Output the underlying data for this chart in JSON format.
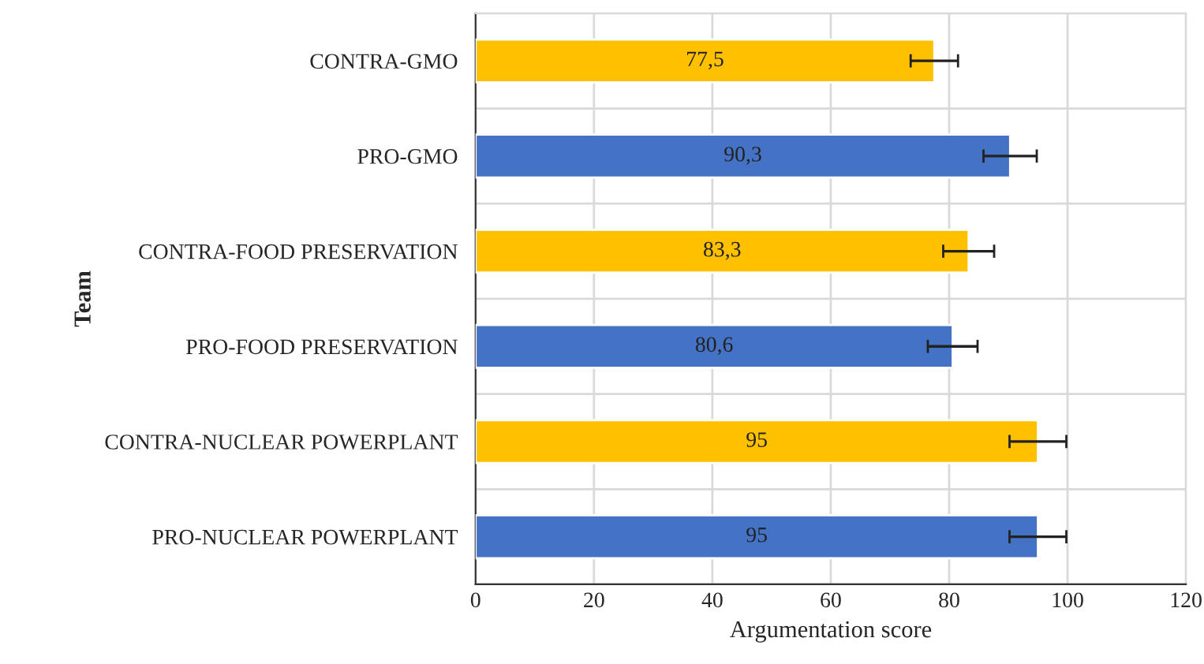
{
  "chart_data": {
    "type": "bar",
    "orientation": "horizontal",
    "xlabel": "Argumentation score",
    "ylabel": "Team",
    "categories": [
      "CONTRA-GMO",
      "PRO-GMO",
      "CONTRA-FOOD PRESERVATION",
      "PRO-FOOD PRESERVATION",
      "CONTRA-NUCLEAR POWERPLANT",
      "PRO-NUCLEAR POWERPLANT"
    ],
    "values": [
      77.5,
      90.3,
      83.3,
      80.6,
      95,
      95
    ],
    "value_labels": [
      "77,5",
      "90,3",
      "83,3",
      "80,6",
      "95",
      "95"
    ],
    "errors": [
      4,
      4.5,
      4.3,
      4.2,
      4.8,
      4.8
    ],
    "colors": [
      "#ffc000",
      "#4472c4",
      "#ffc000",
      "#4472c4",
      "#ffc000",
      "#4472c4"
    ],
    "xlim": [
      0,
      120
    ],
    "xticks": [
      0,
      20,
      40,
      60,
      80,
      100,
      120
    ],
    "grid": true
  }
}
